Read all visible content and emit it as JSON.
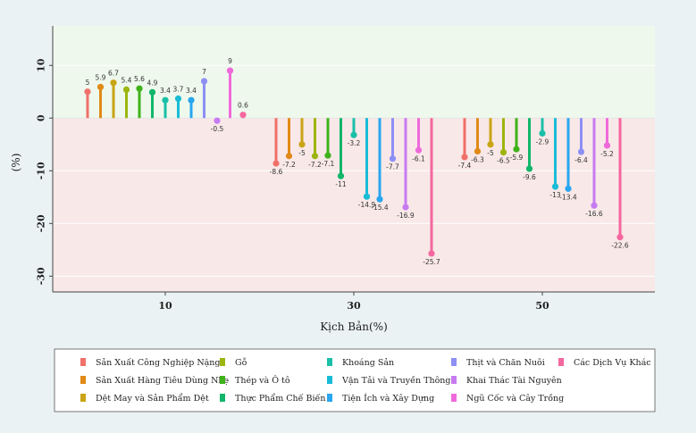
{
  "chart_data": {
    "type": "bar",
    "style": "lollipop",
    "xlabel": "Kịch Bản(%)",
    "ylabel": "(%)",
    "ylim": [
      -33,
      17.5
    ],
    "yticks": [
      10,
      0,
      -10,
      -20,
      -30
    ],
    "xticks": [
      10,
      30,
      50
    ],
    "background": {
      "positive": "#eef8ec",
      "negative": "#f9e8e8"
    },
    "legend_position": "bottom",
    "groups": [
      {
        "scenario": 10,
        "values": [
          5,
          5.9,
          6.7,
          5.4,
          5.6,
          4.9,
          3.4,
          3.7,
          3.4,
          7,
          -0.5,
          9,
          0.6
        ]
      },
      {
        "scenario": 30,
        "values": [
          -8.6,
          -7.2,
          -5,
          -7.2,
          -7.1,
          -11,
          -3.2,
          -14.9,
          -15.4,
          -7.7,
          -16.9,
          -6.1,
          -25.7
        ]
      },
      {
        "scenario": 50,
        "values": [
          -7.4,
          -6.3,
          -5,
          -6.5,
          -5.9,
          -9.6,
          -2.9,
          -13,
          -13.4,
          -6.4,
          -16.6,
          -5.2,
          -22.6
        ]
      }
    ],
    "value_labels": [
      [
        "5",
        "5.9",
        "6.7",
        "5.4",
        "5.6",
        "4.9",
        "3.4",
        "3.7",
        "3.4",
        "7",
        "-0.5",
        "9",
        "0.6"
      ],
      [
        "-8.6",
        "-7.2",
        "-5",
        "-7.2",
        "-7.1",
        "-11",
        "-3.2",
        "-14.9",
        "-15.4",
        "-7.7",
        "-16.9",
        "-6.1",
        "-25.7"
      ],
      [
        "-7.4",
        "-6.3",
        "-5",
        "-6.5",
        "-5.9",
        "-9.6",
        "-2.9",
        "-13",
        "-13.4",
        "-6.4",
        "-16.6",
        "-5.2",
        "-22.6"
      ]
    ],
    "series": [
      {
        "name": "Sản Xuất Công Nghiệp Nặng",
        "color": "#f0706a"
      },
      {
        "name": "Sản Xuất Hàng Tiêu Dùng Nhẹ",
        "color": "#e08a18"
      },
      {
        "name": "Dệt May và Sản Phẩm Dệt",
        "color": "#c9a415"
      },
      {
        "name": "Gỗ",
        "color": "#9db50f"
      },
      {
        "name": "Thép và Ô tô",
        "color": "#3fb21b"
      },
      {
        "name": "Thực Phẩm Chế Biến",
        "color": "#11b66a"
      },
      {
        "name": "Khoáng Sản",
        "color": "#1abfa8"
      },
      {
        "name": "Vận Tải và Truyền Thông",
        "color": "#19bcd6"
      },
      {
        "name": "Tiện Ích và Xây Dựng",
        "color": "#28a6ef"
      },
      {
        "name": "Thịt và Chăn Nuôi",
        "color": "#8d8ff5"
      },
      {
        "name": "Khai Thác Tài Nguyên",
        "color": "#c77bf1"
      },
      {
        "name": "Ngũ Cốc và Cây Trồng",
        "color": "#ef69da"
      },
      {
        "name": "Các Dịch Vụ Khác",
        "color": "#f4679e"
      }
    ]
  }
}
